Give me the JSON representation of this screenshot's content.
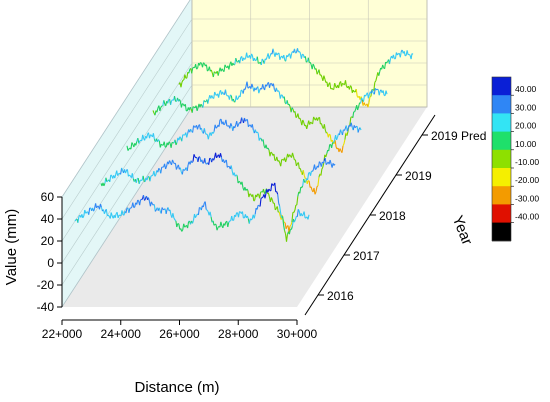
{
  "chart_data": {
    "type": "line",
    "subtype": "3d-waterfall",
    "xlabel": "Distance (m)",
    "ylabel": "Value (mm)",
    "zlabel": "Year",
    "x_ticks": [
      "22+000",
      "24+000",
      "26+000",
      "28+000",
      "30+000"
    ],
    "x_range": [
      22000,
      30000
    ],
    "y_ticks": [
      "-40",
      "-20",
      "0",
      "20",
      "40",
      "60"
    ],
    "y_range": [
      -40,
      60
    ],
    "series_labels": [
      "2016",
      "2017",
      "2018",
      "2019",
      "2019 Pred"
    ],
    "series": [
      {
        "name": "2019 Pred",
        "x": [
          22000,
          22400,
          22800,
          23200,
          23600,
          24000,
          24400,
          24800,
          25200,
          25600,
          26000,
          26400,
          26800,
          27200,
          27600,
          28000,
          28400,
          28800,
          29200,
          29600,
          30000
        ],
        "values": [
          -3,
          12,
          18,
          8,
          14,
          20,
          25,
          18,
          28,
          22,
          30,
          20,
          8,
          -5,
          0,
          -8,
          -22,
          10,
          22,
          28,
          24
        ]
      },
      {
        "name": "2019",
        "x": [
          22000,
          22400,
          22800,
          23200,
          23600,
          24000,
          24400,
          24800,
          25200,
          25600,
          26000,
          26400,
          26800,
          27200,
          27600,
          28000,
          28400,
          28800,
          29200,
          29600,
          30000
        ],
        "values": [
          8,
          18,
          22,
          12,
          15,
          24,
          28,
          20,
          34,
          30,
          36,
          24,
          10,
          -3,
          5,
          -12,
          -27,
          8,
          24,
          30,
          26
        ]
      },
      {
        "name": "2018",
        "x": [
          22000,
          22400,
          22800,
          23200,
          23600,
          24000,
          24400,
          24800,
          25200,
          25600,
          26000,
          26400,
          26800,
          27200,
          27600,
          28000,
          28400,
          28800,
          29200,
          29600,
          30000
        ],
        "values": [
          12,
          20,
          26,
          16,
          18,
          26,
          34,
          24,
          38,
          32,
          40,
          28,
          12,
          0,
          8,
          -10,
          -28,
          10,
          26,
          34,
          30
        ]
      },
      {
        "name": "2017",
        "x": [
          22000,
          22400,
          22800,
          23200,
          23600,
          24000,
          24400,
          24800,
          25200,
          25600,
          26000,
          26400,
          26800,
          27200,
          27600,
          28000,
          28400,
          28800,
          29200,
          29600,
          30000
        ],
        "values": [
          16,
          24,
          30,
          20,
          22,
          30,
          38,
          28,
          42,
          36,
          44,
          32,
          16,
          4,
          12,
          -6,
          -25,
          14,
          30,
          38,
          34
        ]
      },
      {
        "name": "2016",
        "x": [
          22000,
          22400,
          22800,
          23200,
          23600,
          24000,
          24400,
          24800,
          25200,
          25600,
          26000,
          26400,
          26800,
          27200,
          27600,
          28000,
          28400,
          28800,
          29200,
          29600,
          30000
        ],
        "values": [
          20,
          28,
          34,
          24,
          26,
          34,
          42,
          30,
          30,
          12,
          20,
          36,
          14,
          18,
          28,
          20,
          42,
          54,
          4,
          28,
          22
        ]
      }
    ],
    "colorbar": {
      "labels": [
        "40.00",
        "30.00",
        "20.00",
        "10.00",
        "-10.00",
        "-20.00",
        "-30.00",
        "-40.00"
      ],
      "colors": [
        "#0a1fd6",
        "#2f86f5",
        "#33e4f4",
        "#1fe06b",
        "#8ee000",
        "#f5ef00",
        "#f39b00",
        "#e01000",
        "#000000"
      ]
    },
    "back_wall_color": "#ffffd6",
    "side_wall_color": "#e3f7f7",
    "floor_color": "#eaeaea"
  }
}
